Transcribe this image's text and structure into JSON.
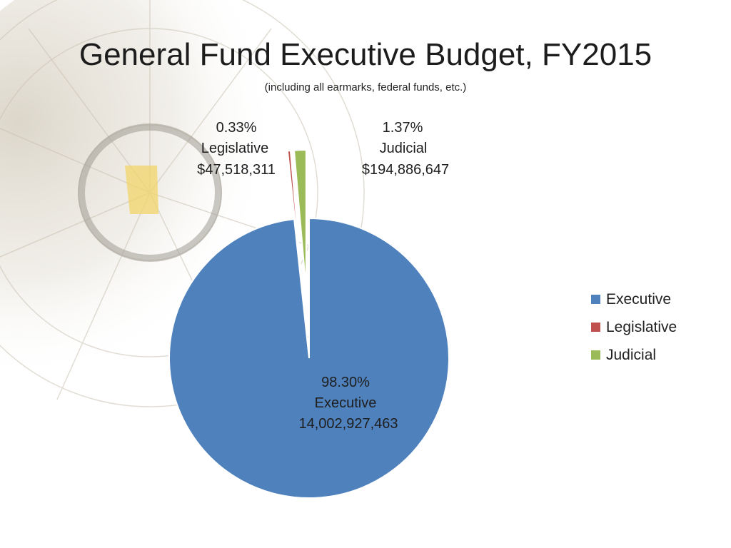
{
  "page": {
    "title": "General Fund Executive Budget, FY2015",
    "subtitle": "(including all earmarks, federal funds, etc.)"
  },
  "chart_data": {
    "type": "pie",
    "title": "General Fund Executive Budget, FY2015",
    "subtitle": "(including all earmarks, federal funds, etc.)",
    "slices": [
      {
        "name": "Executive",
        "percent": 98.3,
        "percent_label": "98.30%",
        "amount_label": "14,002,927,463",
        "color": "#4f81bd",
        "exploded": false
      },
      {
        "name": "Legislative",
        "percent": 0.33,
        "percent_label": "0.33%",
        "amount_label": "$47,518,311",
        "color": "#c0504d",
        "exploded": true
      },
      {
        "name": "Judicial",
        "percent": 1.37,
        "percent_label": "1.37%",
        "amount_label": "$194,886,647",
        "color": "#9bbb59",
        "exploded": true
      }
    ],
    "legend": {
      "placement": "right",
      "entries": [
        "Executive",
        "Legislative",
        "Judicial"
      ]
    }
  }
}
